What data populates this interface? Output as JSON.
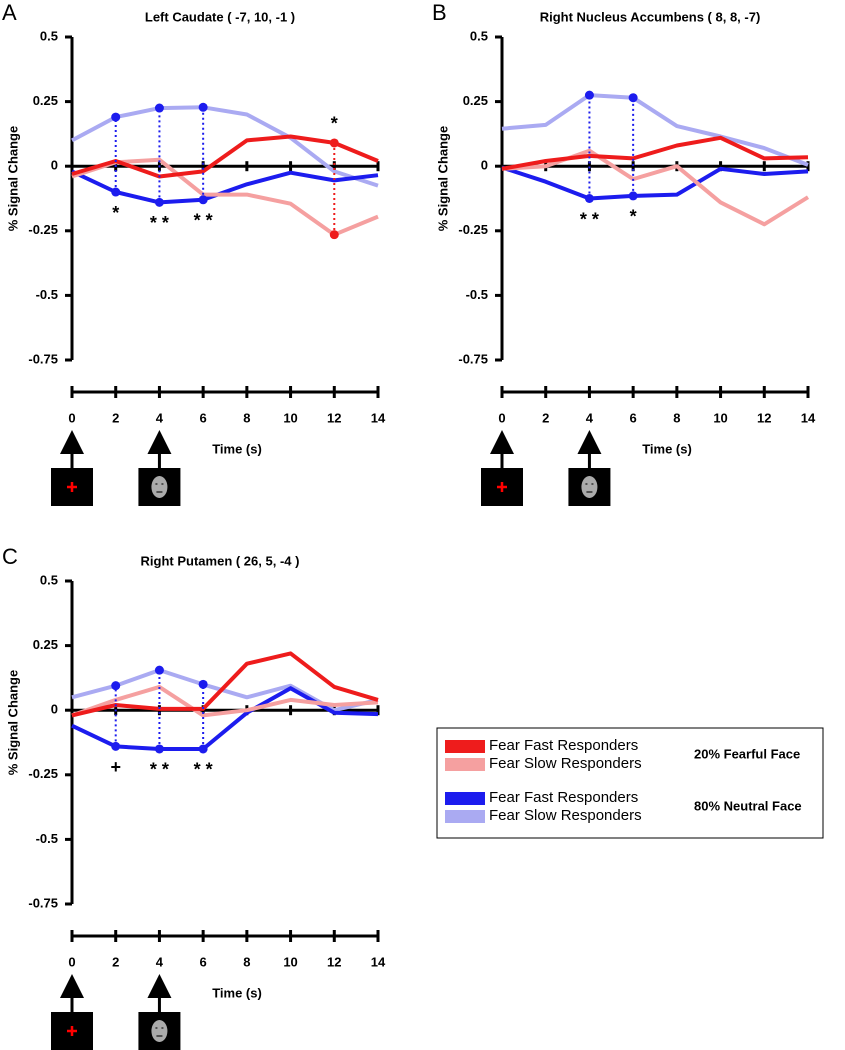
{
  "chart_data": [
    {
      "type": "line",
      "panel": "A",
      "title": "Left Caudate ( -7, 10, -1 )",
      "xlabel": "Time (s)",
      "ylabel": "% Signal Change",
      "x": [
        0,
        2,
        4,
        6,
        8,
        10,
        12,
        14
      ],
      "xlim": [
        0,
        14
      ],
      "xticks": [
        0,
        2,
        4,
        6,
        8,
        10,
        12,
        14
      ],
      "ylim": [
        -0.75,
        0.5
      ],
      "yticks": [
        0.5,
        0.25,
        0,
        -0.25,
        -0.5,
        -0.75
      ],
      "series": [
        {
          "name": "Fear Fast Responders",
          "color": "#ee1c1c",
          "values": [
            -0.03,
            0.02,
            -0.04,
            -0.02,
            0.1,
            0.115,
            0.09,
            0.02
          ]
        },
        {
          "name": "Fear Slow Responders",
          "color": "#f5a0a0",
          "values": [
            -0.04,
            0.015,
            0.025,
            -0.11,
            -0.11,
            -0.145,
            -0.265,
            -0.195
          ]
        },
        {
          "name": "Fear Fast Responders",
          "color": "#1c1cee",
          "values": [
            -0.02,
            -0.1,
            -0.14,
            -0.13,
            -0.07,
            -0.025,
            -0.055,
            -0.035
          ]
        },
        {
          "name": "Fear Slow Responders",
          "color": "#aaaaf2",
          "values": [
            0.1,
            0.19,
            0.225,
            0.228,
            0.2,
            0.11,
            -0.02,
            -0.075
          ]
        }
      ],
      "comparisons": [
        {
          "x": 2,
          "series": [
            2,
            3
          ],
          "text": "*"
        },
        {
          "x": 4,
          "series": [
            2,
            3
          ],
          "text": "* *"
        },
        {
          "x": 6,
          "series": [
            2,
            3
          ],
          "text": "* *"
        },
        {
          "x": 12,
          "series": [
            0,
            1
          ],
          "text": "*"
        }
      ]
    },
    {
      "type": "line",
      "panel": "B",
      "title": "Right  Nucleus Accumbens ( 8, 8, -7)",
      "xlabel": "Time (s)",
      "ylabel": "% Signal Change",
      "x": [
        0,
        2,
        4,
        6,
        8,
        10,
        12,
        14
      ],
      "xlim": [
        0,
        14
      ],
      "xticks": [
        0,
        2,
        4,
        6,
        8,
        10,
        12,
        14
      ],
      "ylim": [
        -0.75,
        0.5
      ],
      "yticks": [
        0.5,
        0.25,
        0,
        -0.25,
        -0.5,
        -0.75
      ],
      "series": [
        {
          "name": "Fear Fast Responders",
          "color": "#ee1c1c",
          "values": [
            -0.01,
            0.02,
            0.04,
            0.03,
            0.08,
            0.11,
            0.03,
            0.035
          ]
        },
        {
          "name": "Fear Slow Responders",
          "color": "#f5a0a0",
          "values": [
            -0.01,
            0.0,
            0.06,
            -0.05,
            0.0,
            -0.14,
            -0.225,
            -0.12
          ]
        },
        {
          "name": "Fear Fast Responders",
          "color": "#1c1cee",
          "values": [
            -0.005,
            -0.06,
            -0.125,
            -0.115,
            -0.11,
            -0.01,
            -0.03,
            -0.02
          ]
        },
        {
          "name": "Fear Slow Responders",
          "color": "#aaaaf2",
          "values": [
            0.145,
            0.16,
            0.275,
            0.265,
            0.155,
            0.115,
            0.07,
            0.005
          ]
        }
      ],
      "comparisons": [
        {
          "x": 4,
          "series": [
            2,
            3
          ],
          "text": "* *"
        },
        {
          "x": 6,
          "series": [
            2,
            3
          ],
          "text": "*"
        }
      ]
    },
    {
      "type": "line",
      "panel": "C",
      "title": "Right Putamen ( 26, 5, -4 )",
      "xlabel": "Time (s)",
      "ylabel": "% Signal Change",
      "x": [
        0,
        2,
        4,
        6,
        8,
        10,
        12,
        14
      ],
      "xlim": [
        0,
        14
      ],
      "xticks": [
        0,
        2,
        4,
        6,
        8,
        10,
        12,
        14
      ],
      "ylim": [
        -0.75,
        0.5
      ],
      "yticks": [
        0.5,
        0.25,
        0,
        -0.25,
        -0.5,
        -0.75
      ],
      "series": [
        {
          "name": "Fear Fast Responders",
          "color": "#ee1c1c",
          "values": [
            -0.02,
            0.02,
            0.005,
            0.005,
            0.18,
            0.22,
            0.09,
            0.04
          ]
        },
        {
          "name": "Fear Slow Responders",
          "color": "#f5a0a0",
          "values": [
            -0.02,
            0.04,
            0.09,
            -0.02,
            0.0,
            0.04,
            0.02,
            0.03
          ]
        },
        {
          "name": "Fear Fast Responders",
          "color": "#1c1cee",
          "values": [
            -0.06,
            -0.14,
            -0.15,
            -0.15,
            -0.01,
            0.085,
            -0.01,
            -0.015
          ]
        },
        {
          "name": "Fear Slow Responders",
          "color": "#aaaaf2",
          "values": [
            0.05,
            0.095,
            0.155,
            0.1,
            0.05,
            0.095,
            0.0,
            0.04
          ]
        }
      ],
      "comparisons": [
        {
          "x": 2,
          "series": [
            2,
            3
          ],
          "text": "+"
        },
        {
          "x": 4,
          "series": [
            2,
            3
          ],
          "text": "* *"
        },
        {
          "x": 6,
          "series": [
            2,
            3
          ],
          "text": "* *"
        }
      ],
      "legend": {
        "groups": [
          {
            "label": "20% Fearful Face",
            "series": [
              0,
              1
            ]
          },
          {
            "label": "80% Neutral Face",
            "series": [
              2,
              3
            ]
          }
        ]
      }
    }
  ]
}
